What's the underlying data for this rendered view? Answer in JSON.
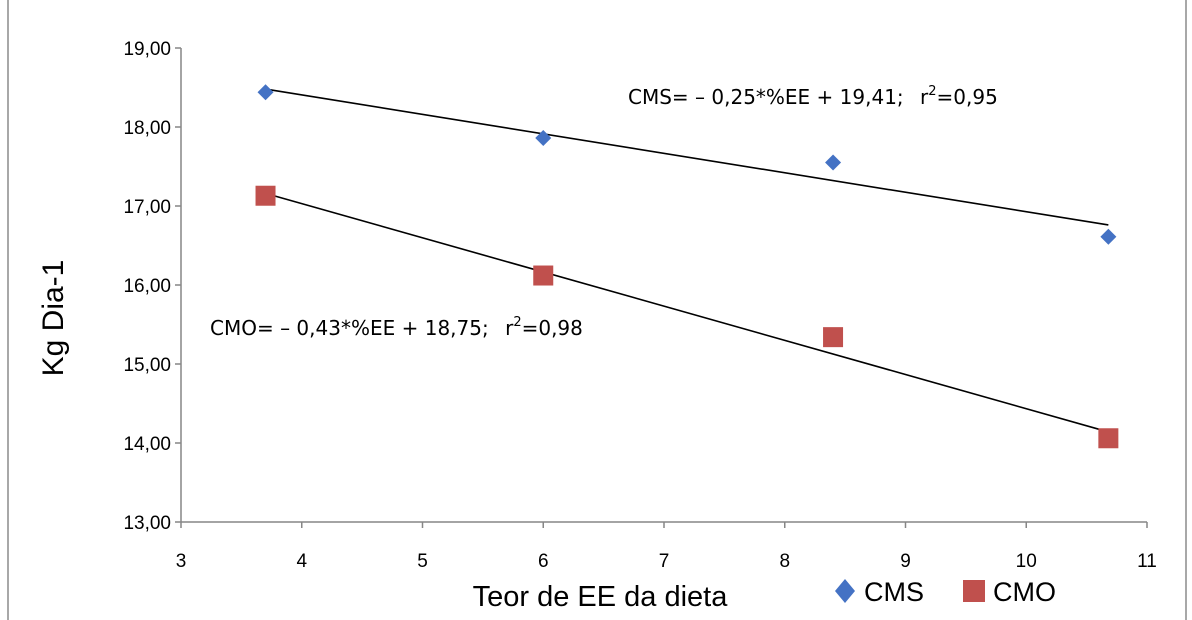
{
  "chart_data": {
    "type": "scatter",
    "xlabel": "Teor de EE da dieta",
    "ylabel": "Kg Dia-1",
    "xlim": [
      3,
      11
    ],
    "ylim": [
      13,
      19
    ],
    "x_ticks": [
      "3",
      "4",
      "5",
      "6",
      "7",
      "8",
      "9",
      "10",
      "11"
    ],
    "y_ticks": [
      "13,00",
      "14,00",
      "15,00",
      "16,00",
      "17,00",
      "18,00",
      "19,00"
    ],
    "grid": false,
    "legend_position": "bottom-right",
    "series": [
      {
        "name": "CMS",
        "marker": "diamond",
        "color": "#4472C4",
        "points": [
          {
            "x": 3.7,
            "y": 18.44
          },
          {
            "x": 6.0,
            "y": 17.86
          },
          {
            "x": 8.4,
            "y": 17.55
          },
          {
            "x": 10.68,
            "y": 16.61
          }
        ],
        "trendline": {
          "x_start": 3.7,
          "y_start": 18.48,
          "x_end": 10.68,
          "y_end": 16.76
        },
        "equation": "CMS= – 0,25*%EE + 19,41;",
        "r2_prefix": "r",
        "r2_sup": "2",
        "r2_value": "=0,95"
      },
      {
        "name": "CMO",
        "marker": "square",
        "color": "#C0504D",
        "points": [
          {
            "x": 3.7,
            "y": 17.13
          },
          {
            "x": 6.0,
            "y": 16.12
          },
          {
            "x": 8.4,
            "y": 15.34
          },
          {
            "x": 10.68,
            "y": 14.06
          }
        ],
        "trendline": {
          "x_start": 3.7,
          "y_start": 17.16,
          "x_end": 10.68,
          "y_end": 14.14
        },
        "equation": "CMO= – 0,43*%EE + 18,75;",
        "r2_prefix": "r",
        "r2_sup": "2",
        "r2_value": "=0,98"
      }
    ]
  }
}
